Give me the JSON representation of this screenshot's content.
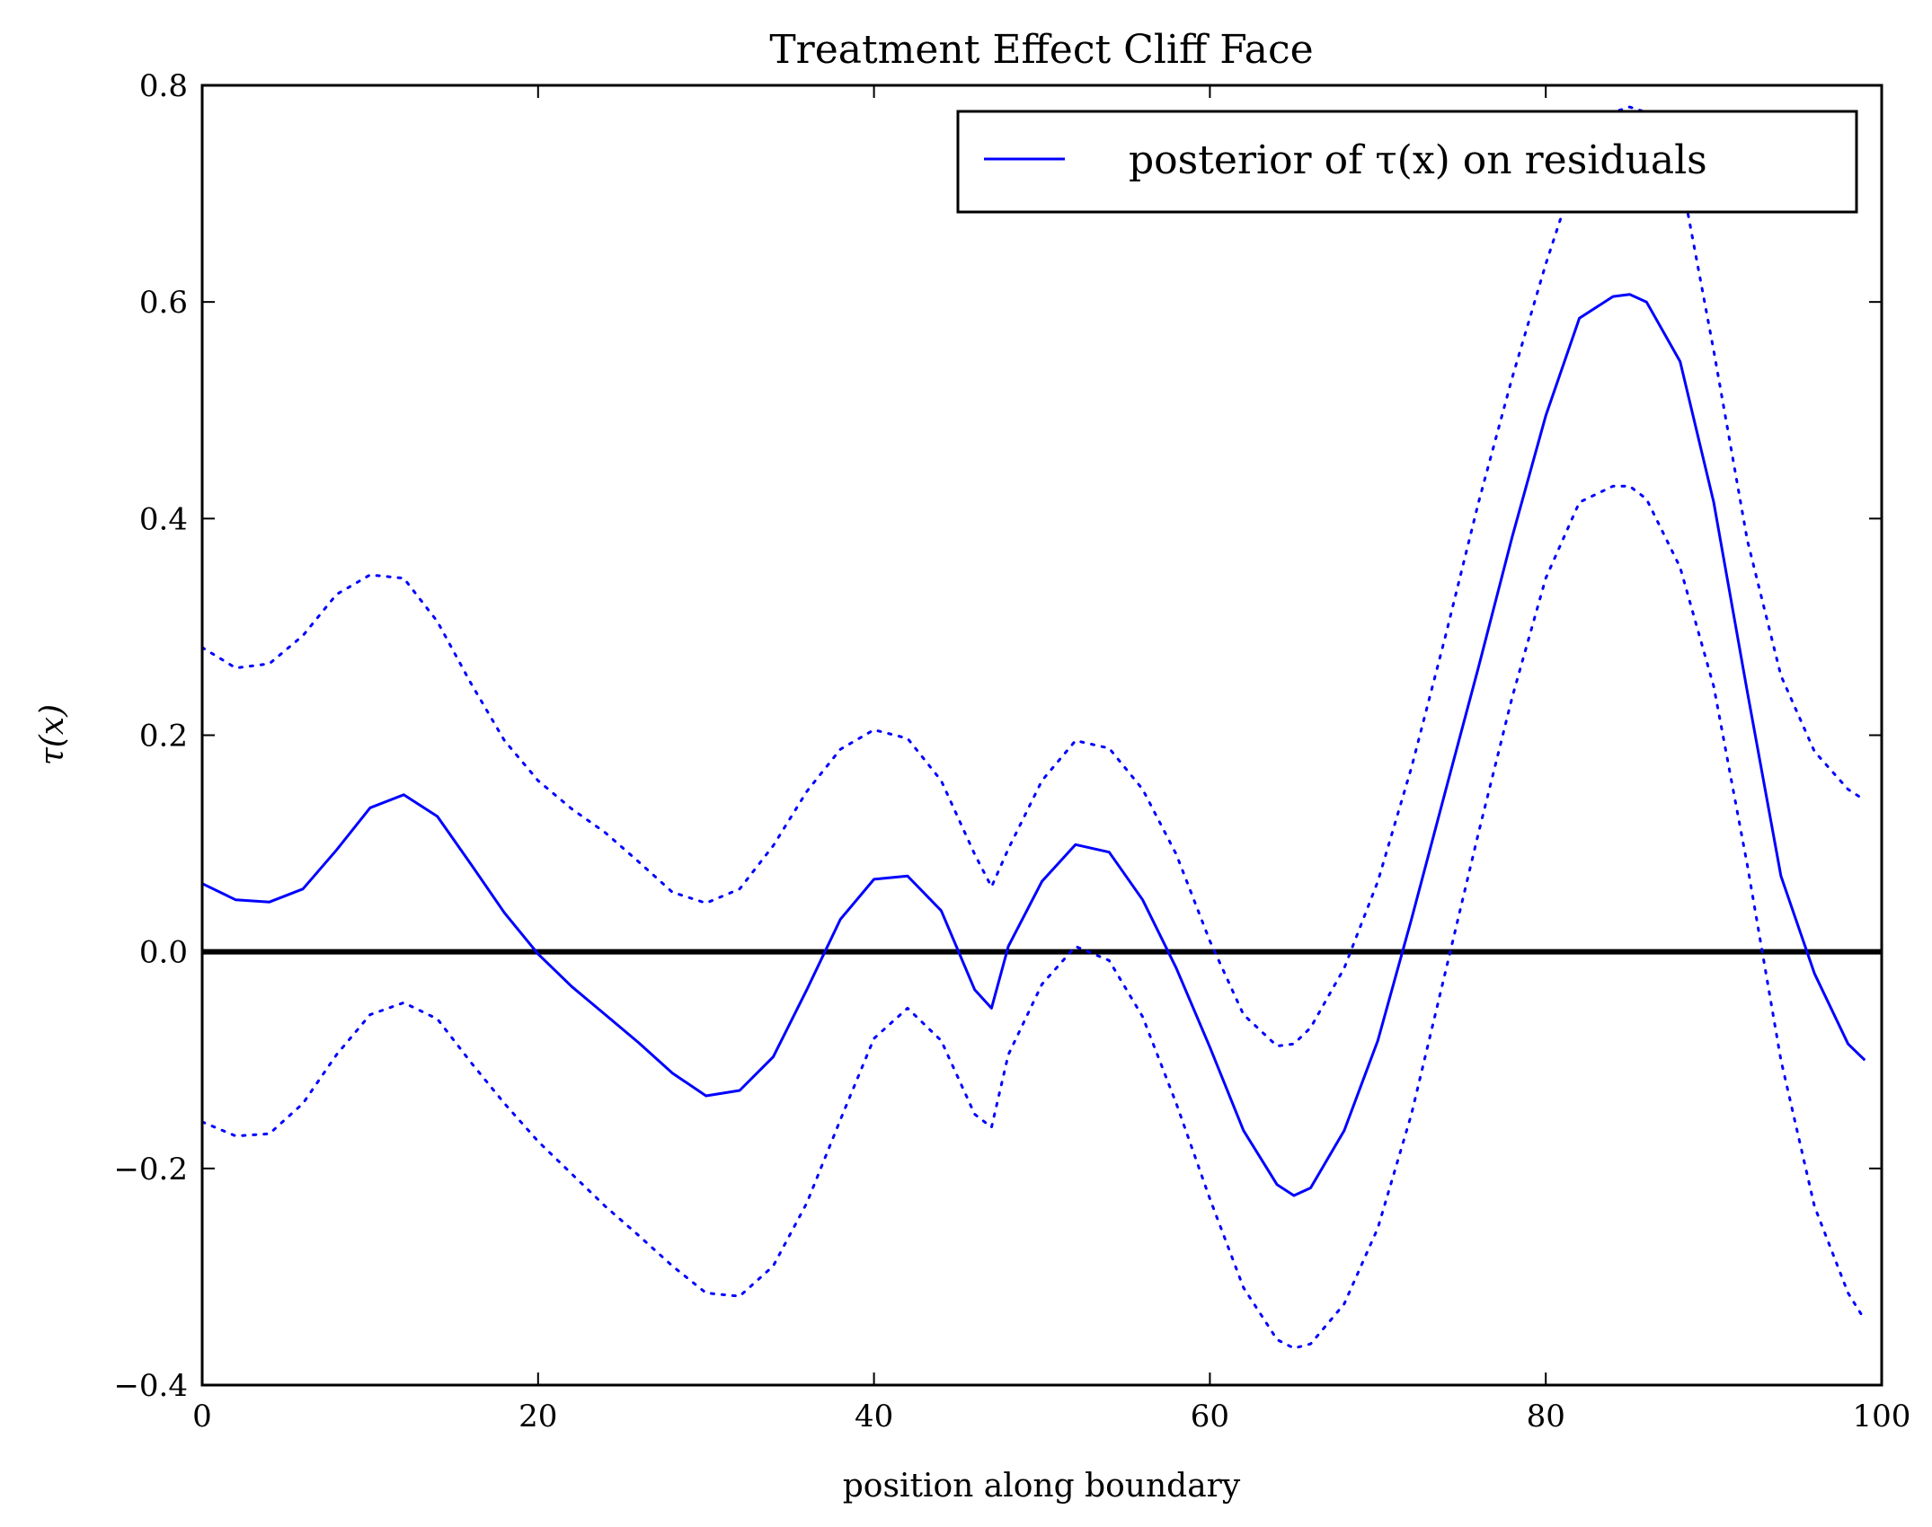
{
  "chart_data": {
    "type": "line",
    "title": "Treatment Effect Cliff Face",
    "xlabel": "position along boundary",
    "ylabel": "τ(x)",
    "xlim": [
      0,
      100
    ],
    "ylim": [
      -0.4,
      0.8
    ],
    "xticks": [
      0,
      20,
      40,
      60,
      80,
      100
    ],
    "xtick_labels": [
      "0",
      "20",
      "40",
      "60",
      "80",
      "100"
    ],
    "yticks": [
      -0.4,
      -0.2,
      0.0,
      0.2,
      0.4,
      0.6,
      0.8
    ],
    "ytick_labels": [
      "−0.4",
      "−0.2",
      "0.0",
      "0.2",
      "0.4",
      "0.6",
      "0.8"
    ],
    "grid": false,
    "legend": {
      "placement": "top-right",
      "entries": [
        {
          "label": "posterior of τ(x) on residuals",
          "series": "posterior mean"
        }
      ]
    },
    "reference_line": {
      "y": 0.0,
      "color": "#000000"
    },
    "colors": {
      "series": "#0000ff",
      "zero_line": "#000000",
      "frame": "#000000"
    },
    "series": [
      {
        "style": "solid",
        "x": [
          0,
          2,
          4,
          6,
          8,
          10,
          12,
          14,
          16,
          18,
          20,
          22,
          24,
          26,
          28,
          30,
          32,
          34,
          36,
          38,
          40,
          42,
          44,
          46,
          47,
          48,
          50,
          52,
          54,
          56,
          58,
          60,
          62,
          64,
          65,
          66,
          68,
          70,
          72,
          74,
          76,
          78,
          80,
          82,
          84,
          85,
          86,
          88,
          90,
          92,
          94,
          96,
          98,
          99
        ],
        "y": [
          0.063,
          0.048,
          0.046,
          0.058,
          0.094,
          0.133,
          0.145,
          0.125,
          0.081,
          0.036,
          -0.002,
          -0.032,
          -0.058,
          -0.084,
          -0.112,
          -0.133,
          -0.128,
          -0.097,
          -0.035,
          0.03,
          0.067,
          0.07,
          0.038,
          -0.035,
          -0.052,
          0.005,
          0.065,
          0.099,
          0.092,
          0.048,
          -0.015,
          -0.088,
          -0.165,
          -0.215,
          -0.225,
          -0.218,
          -0.165,
          -0.082,
          0.03,
          0.147,
          0.263,
          0.383,
          0.495,
          0.585,
          0.605,
          0.607,
          0.6,
          0.545,
          0.415,
          0.24,
          0.07,
          -0.02,
          -0.085,
          -0.1
        ]
      },
      {
        "style": "dotted",
        "x": [
          0,
          2,
          4,
          6,
          8,
          10,
          12,
          14,
          16,
          18,
          20,
          22,
          24,
          26,
          28,
          30,
          32,
          34,
          36,
          38,
          40,
          42,
          44,
          46,
          47,
          48,
          50,
          52,
          54,
          56,
          58,
          60,
          62,
          64,
          65,
          66,
          68,
          70,
          72,
          74,
          76,
          78,
          80,
          82,
          84,
          85,
          86,
          88,
          90,
          92,
          94,
          96,
          98,
          99
        ],
        "y": [
          0.281,
          0.262,
          0.266,
          0.292,
          0.33,
          0.348,
          0.345,
          0.305,
          0.248,
          0.195,
          0.158,
          0.132,
          0.11,
          0.083,
          0.055,
          0.045,
          0.058,
          0.098,
          0.148,
          0.187,
          0.205,
          0.197,
          0.158,
          0.09,
          0.06,
          0.095,
          0.158,
          0.195,
          0.188,
          0.15,
          0.09,
          0.01,
          -0.058,
          -0.087,
          -0.085,
          -0.07,
          -0.015,
          0.065,
          0.17,
          0.29,
          0.415,
          0.53,
          0.635,
          0.73,
          0.775,
          0.78,
          0.775,
          0.72,
          0.555,
          0.38,
          0.255,
          0.185,
          0.15,
          0.14
        ]
      },
      {
        "style": "dotted",
        "x": [
          0,
          2,
          4,
          6,
          8,
          10,
          12,
          14,
          16,
          18,
          20,
          22,
          24,
          26,
          28,
          30,
          32,
          34,
          36,
          38,
          40,
          42,
          44,
          46,
          47,
          48,
          50,
          52,
          54,
          56,
          58,
          60,
          62,
          64,
          65,
          66,
          68,
          70,
          72,
          74,
          76,
          78,
          80,
          82,
          84,
          85,
          86,
          88,
          90,
          92,
          94,
          96,
          98,
          99
        ],
        "y": [
          -0.157,
          -0.17,
          -0.168,
          -0.14,
          -0.095,
          -0.058,
          -0.047,
          -0.062,
          -0.102,
          -0.14,
          -0.175,
          -0.205,
          -0.235,
          -0.262,
          -0.29,
          -0.315,
          -0.318,
          -0.29,
          -0.232,
          -0.155,
          -0.08,
          -0.052,
          -0.082,
          -0.15,
          -0.162,
          -0.095,
          -0.03,
          0.005,
          -0.008,
          -0.06,
          -0.14,
          -0.228,
          -0.31,
          -0.358,
          -0.366,
          -0.362,
          -0.325,
          -0.255,
          -0.15,
          -0.02,
          0.11,
          0.235,
          0.345,
          0.415,
          0.43,
          0.43,
          0.418,
          0.355,
          0.245,
          0.08,
          -0.1,
          -0.235,
          -0.315,
          -0.34
        ]
      }
    ]
  }
}
